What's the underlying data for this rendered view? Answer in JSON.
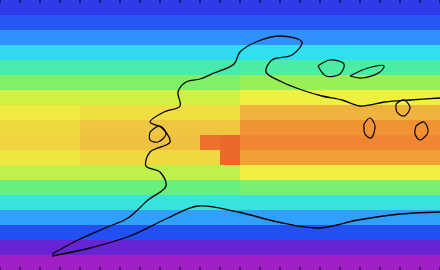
{
  "chart_data": {
    "type": "heatmap",
    "tick_labels": false,
    "zlim": [
      0,
      10
    ],
    "values": [
      [
        1.8,
        1.8,
        1.8,
        1.8,
        1.8,
        1.8,
        1.8,
        1.8,
        1.8,
        1.8,
        1.8,
        1.8,
        1.8,
        1.8,
        1.8,
        1.8,
        1.8,
        1.8,
        1.8,
        1.8,
        1.8,
        1.8
      ],
      [
        2.3,
        2.3,
        2.3,
        2.3,
        2.3,
        2.3,
        2.3,
        2.3,
        2.3,
        2.3,
        2.3,
        2.3,
        2.3,
        2.3,
        2.3,
        2.3,
        2.3,
        2.3,
        2.3,
        2.3,
        2.3,
        2.3
      ],
      [
        3.0,
        3.0,
        3.0,
        3.0,
        3.0,
        3.0,
        3.0,
        3.0,
        3.0,
        3.0,
        3.0,
        3.0,
        3.0,
        3.0,
        3.0,
        3.0,
        3.0,
        3.0,
        3.0,
        3.0,
        3.0,
        3.0
      ],
      [
        3.9,
        3.9,
        3.9,
        3.9,
        3.9,
        3.9,
        3.9,
        3.9,
        3.9,
        3.9,
        3.9,
        3.9,
        4.0,
        4.0,
        4.0,
        4.0,
        4.0,
        4.0,
        4.0,
        4.0,
        4.0,
        4.0
      ],
      [
        4.7,
        4.7,
        4.7,
        4.7,
        4.7,
        4.7,
        4.7,
        4.7,
        4.7,
        4.7,
        4.7,
        4.7,
        4.8,
        4.8,
        4.8,
        4.8,
        4.8,
        4.8,
        4.8,
        4.8,
        4.8,
        4.8
      ],
      [
        5.6,
        5.6,
        5.6,
        5.6,
        5.6,
        5.6,
        5.6,
        5.6,
        5.6,
        5.6,
        5.6,
        5.6,
        5.9,
        5.9,
        5.9,
        5.9,
        5.9,
        5.9,
        5.9,
        5.9,
        5.9,
        5.9
      ],
      [
        6.6,
        6.6,
        6.6,
        6.6,
        6.6,
        6.6,
        6.6,
        6.6,
        6.6,
        6.6,
        6.6,
        6.6,
        7.0,
        7.0,
        7.0,
        7.0,
        7.0,
        7.0,
        7.0,
        7.0,
        7.0,
        7.0
      ],
      [
        7.1,
        7.1,
        7.1,
        7.1,
        7.4,
        7.4,
        7.4,
        7.4,
        7.4,
        7.4,
        7.4,
        7.4,
        8.2,
        8.2,
        8.2,
        8.2,
        8.2,
        8.2,
        8.2,
        8.2,
        8.2,
        8.2
      ],
      [
        7.5,
        7.5,
        7.5,
        7.5,
        7.9,
        7.9,
        7.9,
        7.9,
        7.9,
        7.9,
        7.9,
        7.9,
        8.7,
        8.7,
        8.7,
        8.7,
        8.7,
        8.7,
        8.7,
        8.7,
        8.7,
        8.7
      ],
      [
        7.6,
        7.6,
        7.6,
        7.6,
        8.0,
        8.0,
        8.0,
        8.0,
        8.0,
        8.0,
        9.2,
        9.3,
        8.9,
        8.9,
        8.9,
        8.9,
        8.9,
        8.9,
        8.9,
        8.9,
        8.9,
        8.9
      ],
      [
        7.2,
        7.2,
        7.2,
        7.2,
        7.5,
        7.5,
        7.5,
        7.5,
        7.5,
        7.5,
        7.5,
        9.3,
        8.5,
        8.5,
        8.5,
        8.5,
        8.5,
        8.5,
        8.5,
        8.5,
        8.5,
        8.5
      ],
      [
        6.4,
        6.4,
        6.4,
        6.4,
        6.4,
        6.4,
        6.4,
        6.4,
        6.4,
        6.4,
        6.4,
        6.4,
        7.0,
        7.0,
        7.0,
        7.0,
        7.0,
        7.0,
        7.0,
        7.0,
        7.0,
        7.0
      ],
      [
        5.3,
        5.3,
        5.3,
        5.3,
        5.3,
        5.3,
        5.3,
        5.3,
        5.3,
        5.3,
        5.3,
        5.3,
        5.5,
        5.5,
        5.5,
        5.5,
        5.5,
        5.5,
        5.5,
        5.5,
        5.5,
        5.5
      ],
      [
        4.2,
        4.2,
        4.2,
        4.2,
        4.2,
        4.2,
        4.2,
        4.2,
        4.2,
        4.2,
        4.2,
        4.2,
        4.2,
        4.2,
        4.2,
        4.2,
        4.2,
        4.2,
        4.2,
        4.2,
        4.2,
        4.2
      ],
      [
        3.2,
        3.2,
        3.2,
        3.2,
        3.2,
        3.2,
        3.2,
        3.2,
        3.2,
        3.2,
        3.2,
        3.2,
        3.2,
        3.2,
        3.2,
        3.2,
        3.2,
        3.2,
        3.2,
        3.2,
        3.2,
        3.2
      ],
      [
        2.2,
        2.2,
        2.2,
        2.2,
        2.2,
        2.2,
        2.2,
        2.2,
        2.2,
        2.2,
        2.2,
        2.2,
        2.2,
        2.2,
        2.2,
        2.2,
        2.2,
        2.2,
        2.2,
        2.2,
        2.2,
        2.2
      ],
      [
        1.1,
        1.1,
        1.1,
        1.1,
        1.1,
        1.1,
        1.1,
        1.1,
        1.1,
        1.1,
        1.1,
        1.1,
        1.1,
        1.1,
        1.1,
        1.1,
        1.1,
        1.1,
        1.1,
        1.1,
        1.1,
        1.1
      ],
      [
        0.4,
        0.4,
        0.4,
        0.4,
        0.4,
        0.4,
        0.4,
        0.4,
        0.4,
        0.4,
        0.4,
        0.4,
        0.4,
        0.4,
        0.4,
        0.4,
        0.4,
        0.4,
        0.4,
        0.4,
        0.4,
        0.4
      ]
    ]
  }
}
